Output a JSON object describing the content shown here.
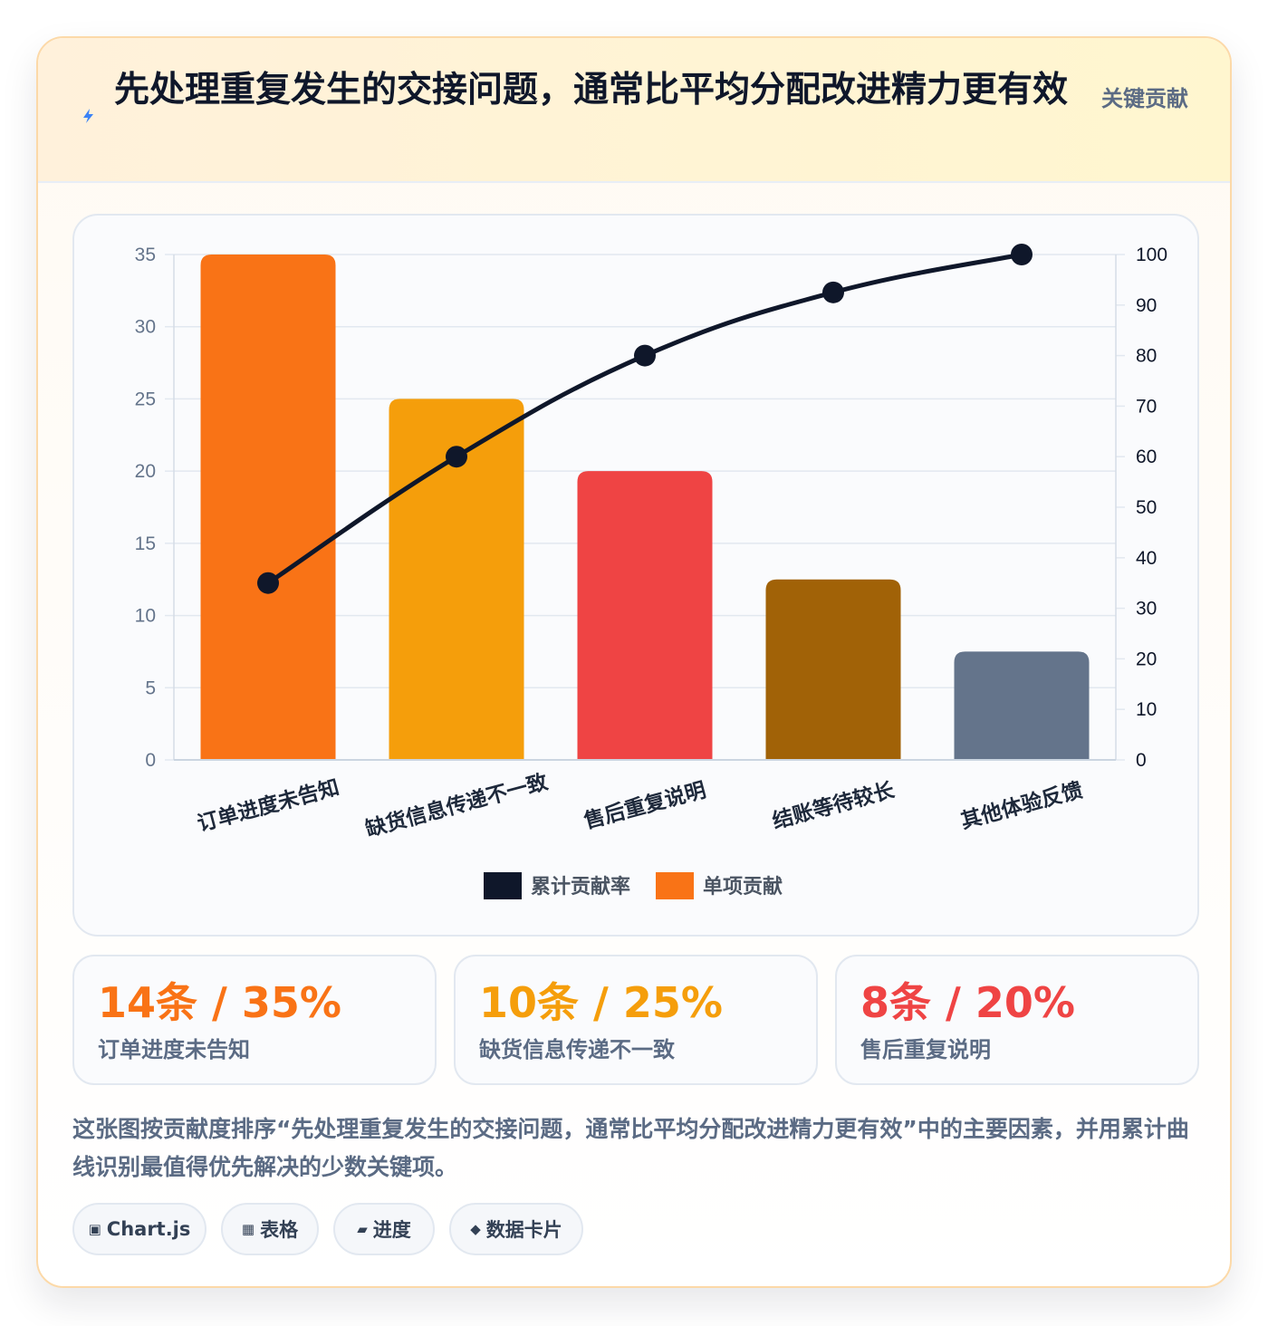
{
  "header": {
    "icon": "lightning-icon",
    "title": "先处理重复发生的交接问题，通常比平均分配改进精力更有效",
    "badge": "关键贡献"
  },
  "chart_data": {
    "type": "bar",
    "categories": [
      "订单进度未告知",
      "缺货信息传递不一致",
      "售后重复说明",
      "结账等待较长",
      "其他体验反馈"
    ],
    "series": [
      {
        "name": "单项贡献",
        "type": "bar",
        "axis": "left",
        "values": [
          35,
          25,
          20,
          12.5,
          7.5
        ],
        "colors": [
          "#f97316",
          "#f59e0b",
          "#ef4444",
          "#a16207",
          "#64748b"
        ]
      },
      {
        "name": "累计贡献率",
        "type": "line",
        "axis": "right",
        "values": [
          35,
          60,
          80,
          92.5,
          100
        ],
        "color": "#0f172a"
      }
    ],
    "left_axis": {
      "range": [
        0,
        35
      ],
      "ticks": [
        0,
        5,
        10,
        15,
        20,
        25,
        30,
        35
      ]
    },
    "right_axis": {
      "range": [
        0,
        100
      ],
      "ticks": [
        0,
        10,
        20,
        30,
        40,
        50,
        60,
        70,
        80,
        90,
        100
      ]
    },
    "legend": [
      {
        "label": "累计贡献率",
        "color": "#0f172a"
      },
      {
        "label": "单项贡献",
        "color": "#f97316"
      }
    ],
    "legend_position": "bottom",
    "grid": true
  },
  "stats": [
    {
      "value": "14条 / 35%",
      "label": "订单进度未告知",
      "color": "#f97316"
    },
    {
      "value": "10条 / 25%",
      "label": "缺货信息传递不一致",
      "color": "#f59e0b"
    },
    {
      "value": "8条 / 20%",
      "label": "售后重复说明",
      "color": "#ef4444"
    }
  ],
  "description": "这张图按贡献度排序“先处理重复发生的交接问题，通常比平均分配改进精力更有效”中的主要因素，并用累计曲线识别最值得优先解决的少数关键项。",
  "tags": [
    {
      "icon": "▣",
      "label": "Chart.js"
    },
    {
      "icon": "▦",
      "label": "表格"
    },
    {
      "icon": "▰",
      "label": "进度"
    },
    {
      "icon": "◆",
      "label": "数据卡片"
    }
  ]
}
